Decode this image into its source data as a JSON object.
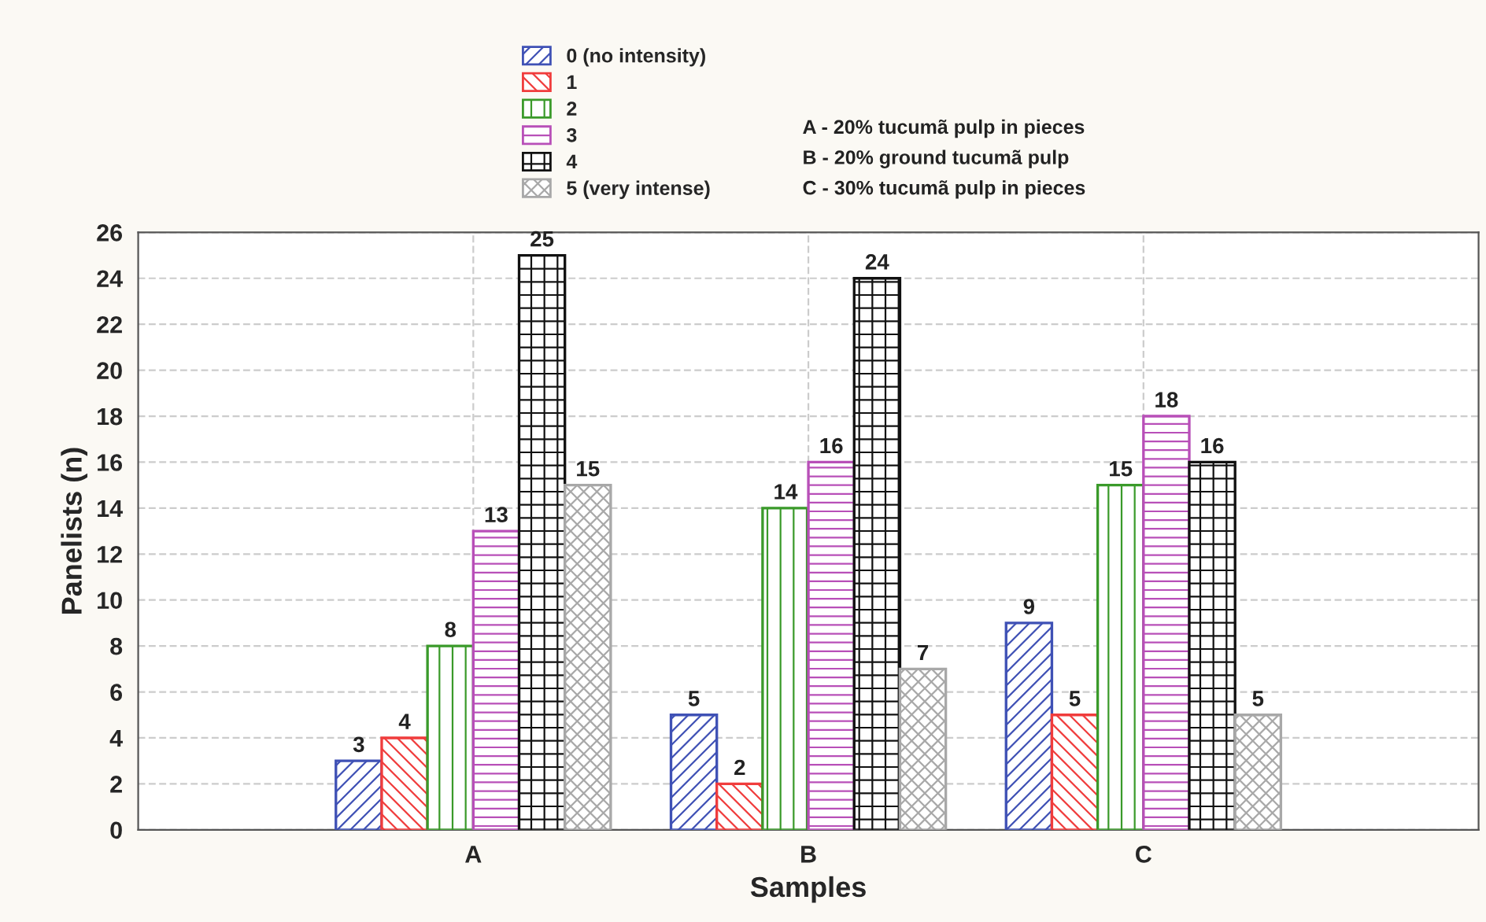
{
  "chart_data": {
    "type": "bar",
    "xlabel": "Samples",
    "ylabel": "Panelists (n)",
    "categories": [
      "A",
      "B",
      "C"
    ],
    "series": [
      {
        "name": "0 (no intensity)",
        "color": "#3f51b5",
        "values": [
          3,
          5,
          9
        ]
      },
      {
        "name": "1",
        "color": "#f03c3c",
        "values": [
          4,
          2,
          5
        ]
      },
      {
        "name": "2",
        "color": "#3a9a2a",
        "values": [
          8,
          14,
          15
        ]
      },
      {
        "name": "3",
        "color": "#b84fb8",
        "values": [
          13,
          16,
          18
        ]
      },
      {
        "name": "4",
        "color": "#111111",
        "values": [
          25,
          24,
          16
        ]
      },
      {
        "name": "5 (very intense)",
        "color": "#a8a8a8",
        "values": [
          15,
          7,
          5
        ]
      }
    ],
    "ylim": [
      0,
      26
    ],
    "yticks": [
      0,
      2,
      4,
      6,
      8,
      10,
      12,
      14,
      16,
      18,
      20,
      22,
      24,
      26
    ],
    "grid": true,
    "legend": "top",
    "data_labels": true,
    "annotations": [
      "A - 20% tucumã pulp in pieces",
      "B - 20% ground tucumã pulp",
      "C - 30% tucumã pulp in pieces"
    ]
  }
}
